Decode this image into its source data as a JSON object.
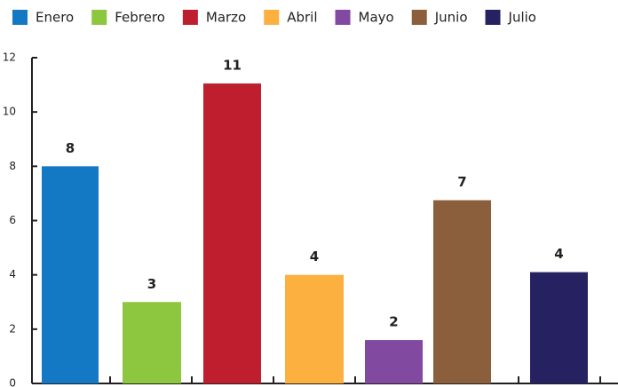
{
  "chart_data": {
    "type": "bar",
    "series": [
      {
        "name": "Enero",
        "color": "#1479c4",
        "values": [
          8
        ],
        "value_labels": [
          "8"
        ]
      },
      {
        "name": "Febrero",
        "color": "#8dc63f",
        "values": [
          3
        ],
        "value_labels": [
          "3"
        ]
      },
      {
        "name": "Marzo",
        "color": "#be1e2d",
        "values": [
          11.05
        ],
        "value_labels": [
          "11"
        ]
      },
      {
        "name": "Abril",
        "color": "#fbb040",
        "values": [
          4
        ],
        "value_labels": [
          "4"
        ]
      },
      {
        "name": "Mayo",
        "color": "#8249a0",
        "values": [
          1.6
        ],
        "value_labels": [
          "2"
        ]
      },
      {
        "name": "Junio",
        "color": "#8b5e3c",
        "values": [
          6.75
        ],
        "value_labels": [
          "7"
        ]
      },
      {
        "name": "Julio",
        "color": "#262262",
        "values": [
          4.1
        ],
        "value_labels": [
          "4"
        ]
      }
    ],
    "ylim": [
      0,
      12
    ],
    "yticks": [
      0,
      2,
      4,
      6,
      8,
      10,
      12
    ],
    "legend": "top"
  }
}
